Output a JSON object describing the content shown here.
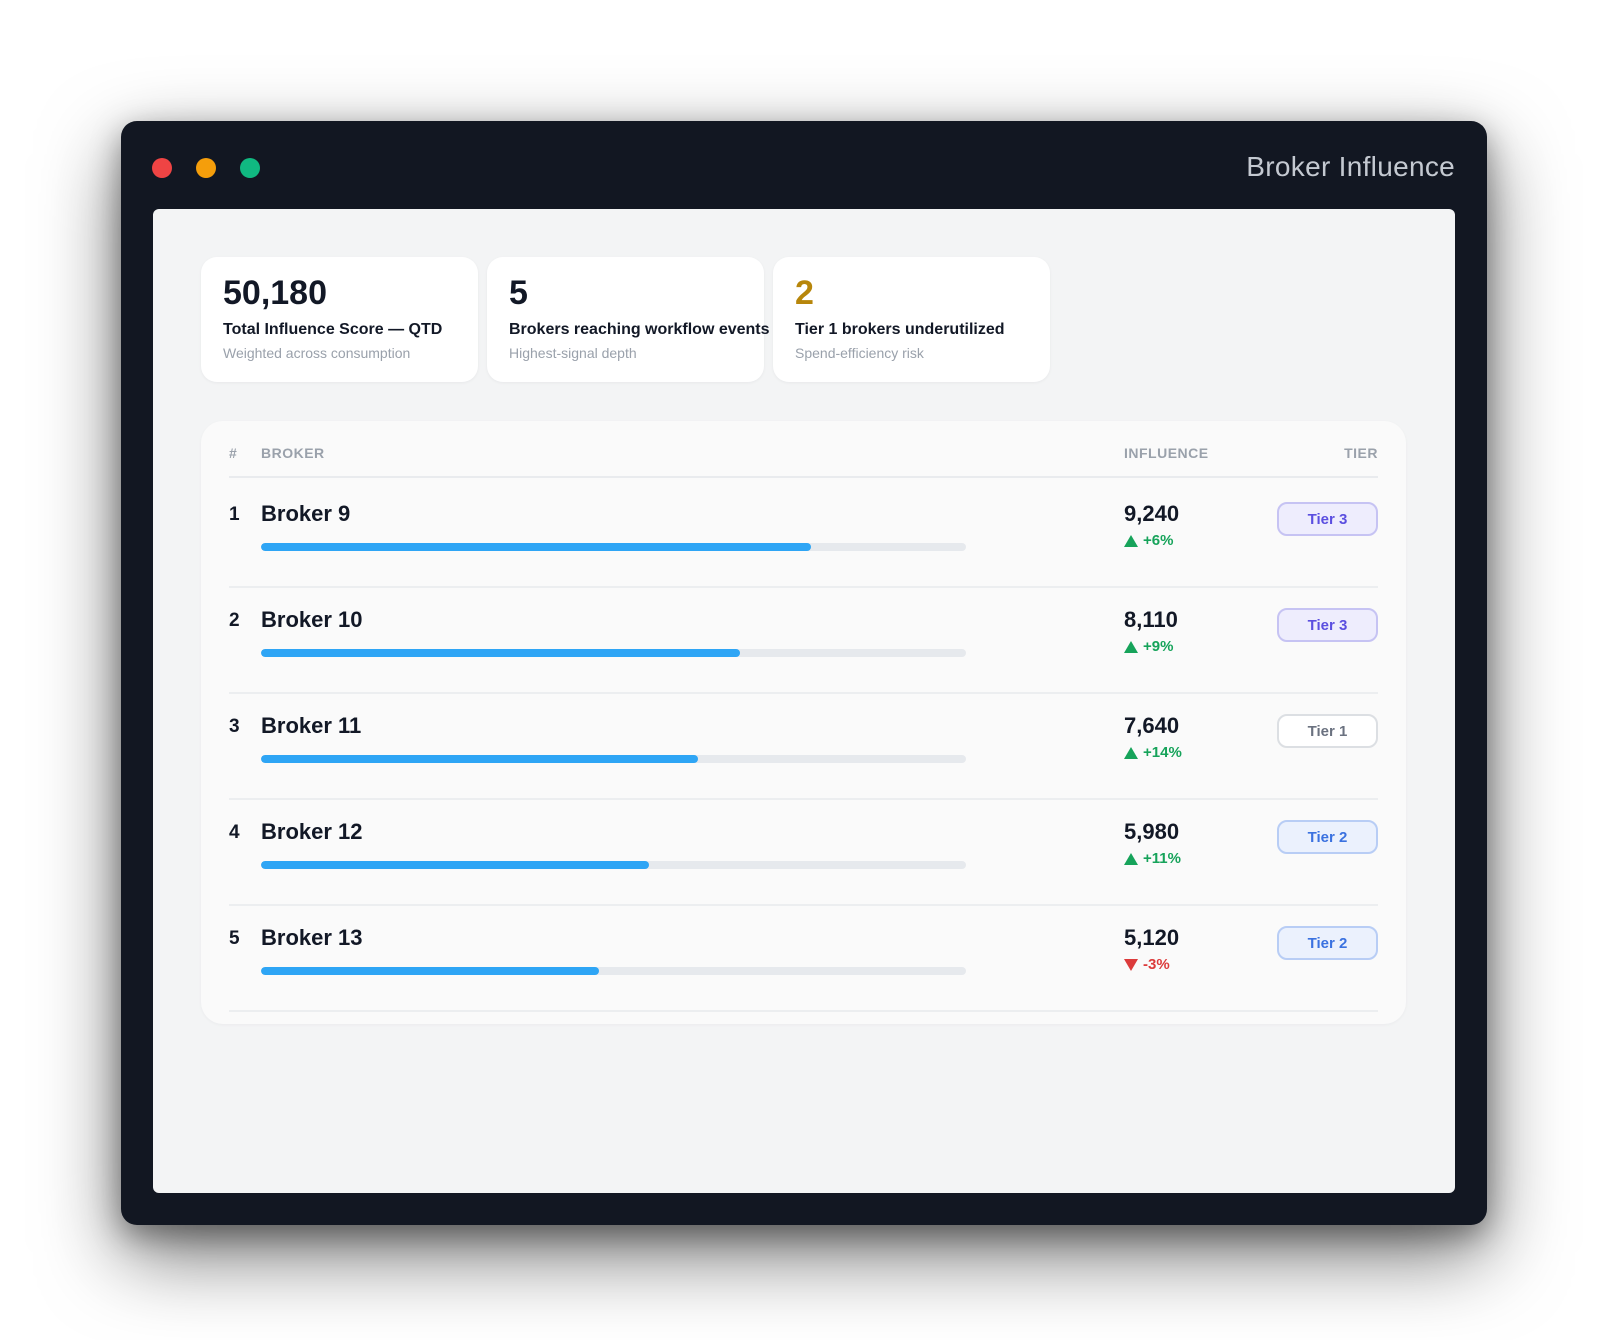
{
  "window": {
    "title": "Broker Influence",
    "traffic_lights": [
      "close",
      "minimize",
      "maximize"
    ],
    "colors": {
      "close": "#ef4444",
      "minimize": "#f59e0b",
      "maximize": "#10b981"
    }
  },
  "kpis": [
    {
      "value": "50,180",
      "label": "Total Influence Score — QTD",
      "sub": "Weighted across consumption",
      "accent": "#121826"
    },
    {
      "value": "5",
      "label": "Brokers reaching workflow events",
      "sub": "Highest-signal depth",
      "accent": "#121826"
    },
    {
      "value": "2",
      "label": "Tier 1 brokers underutilized",
      "sub": "Spend-efficiency risk",
      "accent": "#b7860b"
    }
  ],
  "table": {
    "headers": {
      "num": "#",
      "broker": "BROKER",
      "influence": "INFLUENCE",
      "tier": "TIER"
    },
    "rows": [
      {
        "rank": "1",
        "broker": "Broker 9",
        "influence": "9,240",
        "delta": "+6%",
        "direction": "up",
        "tier": "Tier 3",
        "bar_fraction": 0.78
      },
      {
        "rank": "2",
        "broker": "Broker 10",
        "influence": "8,110",
        "delta": "+9%",
        "direction": "up",
        "tier": "Tier 3",
        "bar_fraction": 0.68
      },
      {
        "rank": "3",
        "broker": "Broker 11",
        "influence": "7,640",
        "delta": "+14%",
        "direction": "up",
        "tier": "Tier 1",
        "bar_fraction": 0.62
      },
      {
        "rank": "4",
        "broker": "Broker 12",
        "influence": "5,980",
        "delta": "+11%",
        "direction": "up",
        "tier": "Tier 2",
        "bar_fraction": 0.55
      },
      {
        "rank": "5",
        "broker": "Broker 13",
        "influence": "5,120",
        "delta": "-3%",
        "direction": "down",
        "tier": "Tier 2",
        "bar_fraction": 0.48
      }
    ]
  },
  "colors": {
    "bar": "#2ea5f5",
    "up": "#16a35a",
    "down": "#dc3b3b"
  }
}
